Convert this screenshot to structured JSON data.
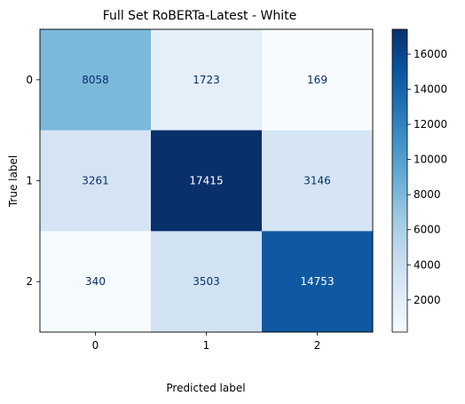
{
  "chart_data": {
    "type": "heatmap",
    "title": "Full Set RoBERTa-Latest - White",
    "xlabel": "Predicted label",
    "ylabel": "True label",
    "x_categories": [
      "0",
      "1",
      "2"
    ],
    "y_categories": [
      "0",
      "1",
      "2"
    ],
    "values": [
      [
        8058,
        1723,
        169
      ],
      [
        3261,
        17415,
        3146
      ],
      [
        340,
        3503,
        14753
      ]
    ],
    "colormap": "Blues",
    "colorbar": {
      "ticks": [
        2000,
        4000,
        6000,
        8000,
        10000,
        12000,
        14000,
        16000
      ],
      "range": [
        169,
        17415
      ]
    },
    "grid": false
  }
}
